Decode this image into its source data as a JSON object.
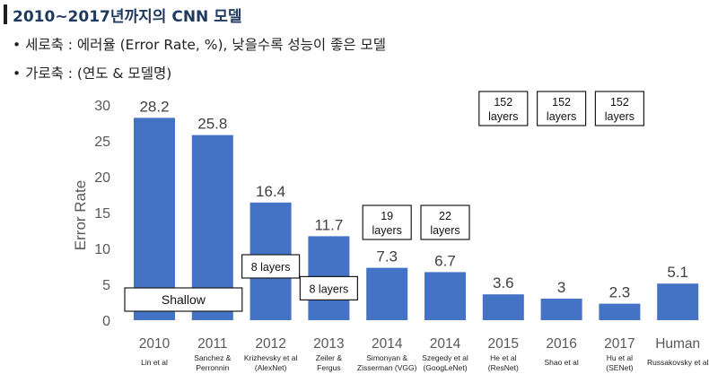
{
  "header": {
    "title": "2010~2017년까지의 CNN 모델",
    "bullets": [
      "• 세로축 : 에러율 (Error Rate, %), 낮을수록 성능이 좋은 모델",
      "• 가로축 : (연도 & 모델명)"
    ]
  },
  "chart_data": {
    "type": "bar",
    "ylabel": "Error Rate",
    "ylim": [
      0,
      30
    ],
    "yticks": [
      0,
      5,
      10,
      15,
      20,
      25,
      30
    ],
    "grid": false,
    "bar_color": "#4472c4",
    "categories": [
      {
        "year": "2010",
        "name": [
          "Lin et al"
        ]
      },
      {
        "year": "2011",
        "name": [
          "Sanchez &",
          "Perronnin"
        ]
      },
      {
        "year": "2012",
        "name": [
          "Krizhevsky et al",
          "(AlexNet)"
        ]
      },
      {
        "year": "2013",
        "name": [
          "Zeiler &",
          "Fergus"
        ]
      },
      {
        "year": "2014",
        "name": [
          "Simonyan &",
          "Zisserman (VGG)"
        ]
      },
      {
        "year": "2014",
        "name": [
          "Szegedy et al",
          "(GoogLeNet)"
        ]
      },
      {
        "year": "2015",
        "name": [
          "He et al",
          "(ResNet)"
        ]
      },
      {
        "year": "2016",
        "name": [
          "Shao et al"
        ]
      },
      {
        "year": "2017",
        "name": [
          "Hu et al",
          "(SENet)"
        ]
      },
      {
        "year": "Human",
        "name": [
          "Russakovsky et al"
        ]
      }
    ],
    "values": [
      28.2,
      25.8,
      16.4,
      11.7,
      7.3,
      6.7,
      3.6,
      3,
      2.3,
      5.1
    ],
    "value_labels": [
      "28.2",
      "25.8",
      "16.4",
      "11.7",
      "7.3",
      "6.7",
      "3.6",
      "3",
      "2.3",
      "5.1"
    ],
    "annotations": [
      {
        "text": [
          "Shallow"
        ],
        "bars": [
          0,
          1
        ]
      },
      {
        "text": [
          "8 layers"
        ],
        "bars": [
          2
        ]
      },
      {
        "text": [
          "8 layers"
        ],
        "bars": [
          3
        ]
      },
      {
        "text": [
          "19",
          "layers"
        ],
        "bars": [
          4
        ]
      },
      {
        "text": [
          "22",
          "layers"
        ],
        "bars": [
          5
        ]
      },
      {
        "text": [
          "152",
          "layers"
        ],
        "bars": [
          6
        ]
      },
      {
        "text": [
          "152",
          "layers"
        ],
        "bars": [
          7
        ]
      },
      {
        "text": [
          "152",
          "layers"
        ],
        "bars": [
          8
        ]
      }
    ]
  }
}
